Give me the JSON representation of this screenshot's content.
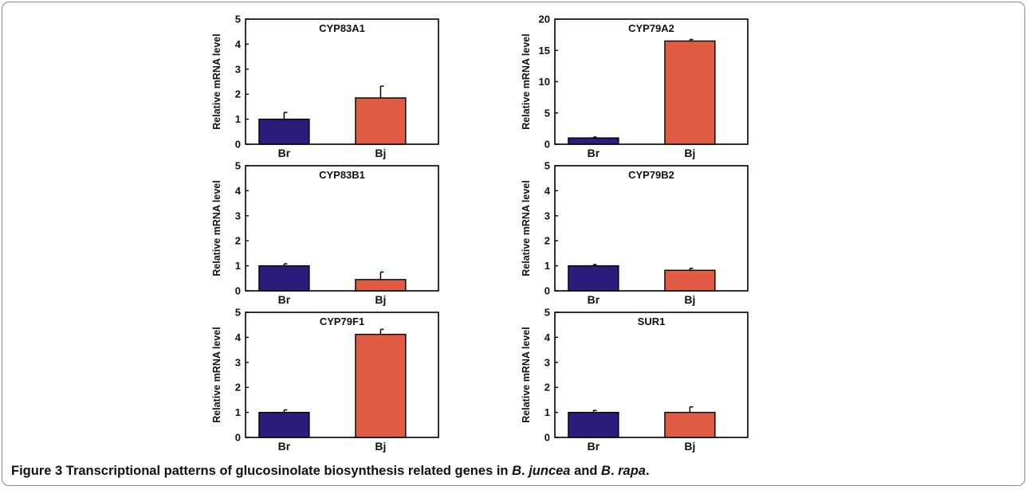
{
  "figure": {
    "caption_label": "Figure 3",
    "caption_text_1": "Transcriptional patterns of glucosinolate biosynthesis related genes in",
    "caption_species_1_prefix": "B",
    "caption_species_1_name": "juncea",
    "caption_and": "and",
    "caption_species_2_prefix": "B",
    "caption_species_2_name": "rapa",
    "caption_dot": "."
  },
  "colors": {
    "br": "#2c1c7c",
    "bj": "#e05c44",
    "axis": "#000000"
  },
  "chart_data": [
    {
      "type": "bar",
      "title": "CYP83A1",
      "ylabel": "Relative mRNA level",
      "categories": [
        "Br",
        "Bj"
      ],
      "values": [
        1.0,
        1.85
      ],
      "errors": [
        0.27,
        0.47
      ],
      "ylim": [
        0,
        5
      ],
      "yticks": [
        0,
        1,
        2,
        3,
        4,
        5
      ]
    },
    {
      "type": "bar",
      "title": "CYP79A2",
      "ylabel": "Relative mRNA level",
      "categories": [
        "Br",
        "Bj"
      ],
      "values": [
        1.0,
        16.5
      ],
      "errors": [
        0.15,
        0.25
      ],
      "ylim": [
        0,
        20
      ],
      "yticks": [
        0,
        5,
        10,
        15,
        20
      ]
    },
    {
      "type": "bar",
      "title": "CYP83B1",
      "ylabel": "Relative mRNA level",
      "categories": [
        "Br",
        "Bj"
      ],
      "values": [
        1.0,
        0.45
      ],
      "errors": [
        0.08,
        0.3
      ],
      "ylim": [
        0,
        5
      ],
      "yticks": [
        0,
        1,
        2,
        3,
        4,
        5
      ]
    },
    {
      "type": "bar",
      "title": "CYP79B2",
      "ylabel": "Relative mRNA level",
      "categories": [
        "Br",
        "Bj"
      ],
      "values": [
        1.0,
        0.82
      ],
      "errors": [
        0.05,
        0.08
      ],
      "ylim": [
        0,
        5
      ],
      "yticks": [
        0,
        1,
        2,
        3,
        4,
        5
      ]
    },
    {
      "type": "bar",
      "title": "CYP79F1",
      "ylabel": "Relative mRNA level",
      "categories": [
        "Br",
        "Bj"
      ],
      "values": [
        1.0,
        4.12
      ],
      "errors": [
        0.1,
        0.2
      ],
      "ylim": [
        0,
        5
      ],
      "yticks": [
        0,
        1,
        2,
        3,
        4,
        5
      ]
    },
    {
      "type": "bar",
      "title": "SUR1",
      "ylabel": "Relative mRNA level",
      "categories": [
        "Br",
        "Bj"
      ],
      "values": [
        1.0,
        1.0
      ],
      "errors": [
        0.08,
        0.22
      ],
      "ylim": [
        0,
        5
      ],
      "yticks": [
        0,
        1,
        2,
        3,
        4,
        5
      ]
    }
  ]
}
